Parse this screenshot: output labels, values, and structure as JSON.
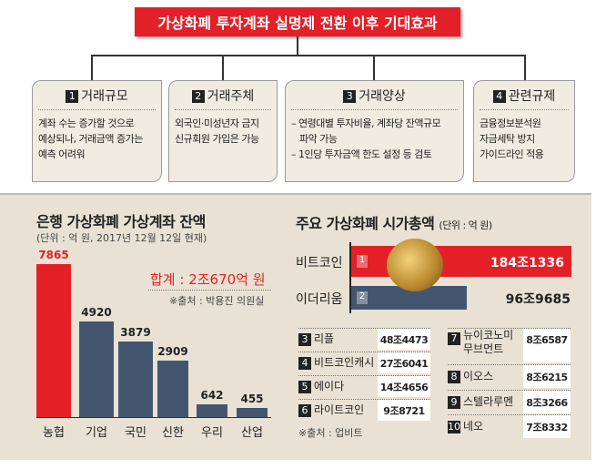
{
  "header": {
    "title": "가상화폐 투자계좌 실명제 전환 이후 기대효과"
  },
  "effects": [
    {
      "num": "1",
      "title": "거래규모",
      "lines": [
        "계좌 수는 증가할 것으로",
        "예상되나, 거래금액 증가는",
        "예측 어려워"
      ]
    },
    {
      "num": "2",
      "title": "거래주체",
      "lines": [
        "외국인·미성년자 금지",
        "신규회원 가입은 가능"
      ]
    },
    {
      "num": "3",
      "title": "거래양상",
      "lines": [
        "– 연령대별 투자비율, 계좌당 잔액규모",
        "   파악 가능",
        "– 1인당 투자금액 한도 설정 등 검토"
      ]
    },
    {
      "num": "4",
      "title": "관련규제",
      "lines": [
        "금융정보분석원",
        "자금세탁 방지",
        "가이드라인 적용"
      ]
    }
  ],
  "chart_data": [
    {
      "type": "bar",
      "title": "은행 가상화폐 가상계좌 잔액",
      "subtitle": "(단위 : 억 원, 2017년 12월 12일 현재)",
      "categories": [
        "농협",
        "기업",
        "국민",
        "신한",
        "우리",
        "산업"
      ],
      "values": [
        7865,
        4920,
        3879,
        2909,
        642,
        455
      ],
      "highlight": "농협",
      "total": "합계 : 2조670억 원",
      "source": "※출처 : 박용진 의원실",
      "colors": {
        "highlight": "#e32028",
        "default": "#44566f"
      }
    },
    {
      "type": "bar",
      "orientation": "horizontal",
      "title": "주요 가상화폐 시가총액",
      "unit": "(단위 : 억 원)",
      "categories": [
        "비트코인",
        "이더리움"
      ],
      "ranks": [
        "1",
        "2"
      ],
      "values": [
        1841336,
        969685
      ],
      "labels": [
        "184조1336",
        "96조9685"
      ],
      "colors": [
        "#e32028",
        "#44566f"
      ]
    },
    {
      "type": "table",
      "rows": [
        {
          "rank": "3",
          "name": "리플",
          "value": "48조4473"
        },
        {
          "rank": "4",
          "name": "비트코인캐시",
          "value": "27조6041"
        },
        {
          "rank": "5",
          "name": "에이다",
          "value": "14조4656"
        },
        {
          "rank": "6",
          "name": "라이트코인",
          "value": "9조8721"
        },
        {
          "rank": "7",
          "name": "뉴이코노미 무브먼트",
          "value": "8조6587"
        },
        {
          "rank": "8",
          "name": "이오스",
          "value": "8조6215"
        },
        {
          "rank": "9",
          "name": "스텔라루멘",
          "value": "8조3266"
        },
        {
          "rank": "10",
          "name": "네오",
          "value": "7조8332"
        }
      ],
      "source": "※출처 : 업비트"
    }
  ]
}
